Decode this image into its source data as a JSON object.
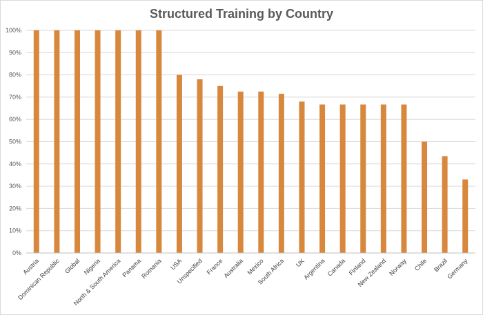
{
  "chart_data": {
    "type": "bar",
    "title": "Structured Training by Country",
    "xlabel": "",
    "ylabel": "",
    "ylim": [
      0,
      100
    ],
    "y_ticks": [
      "0%",
      "10%",
      "20%",
      "30%",
      "40%",
      "50%",
      "60%",
      "70%",
      "80%",
      "90%",
      "100%"
    ],
    "grid": true,
    "legend": "none",
    "bar_color": "#D8883D",
    "categories": [
      "Austria",
      "Dominican Republic",
      "Global",
      "Nigeria",
      "North & South America",
      "Panama",
      "Romania",
      "USA",
      "Unspecified",
      "France",
      "Australia",
      "Mexico",
      "South Africa",
      "UK",
      "Argentina",
      "Canada",
      "Finland",
      "New Zealand",
      "Norway",
      "Chile",
      "Brazil",
      "Germany"
    ],
    "values": [
      100,
      100,
      100,
      100,
      100,
      100,
      100,
      80,
      78,
      75,
      72.5,
      72.5,
      71.5,
      68,
      66.7,
      66.7,
      66.7,
      66.7,
      66.7,
      50,
      43.5,
      33
    ]
  }
}
